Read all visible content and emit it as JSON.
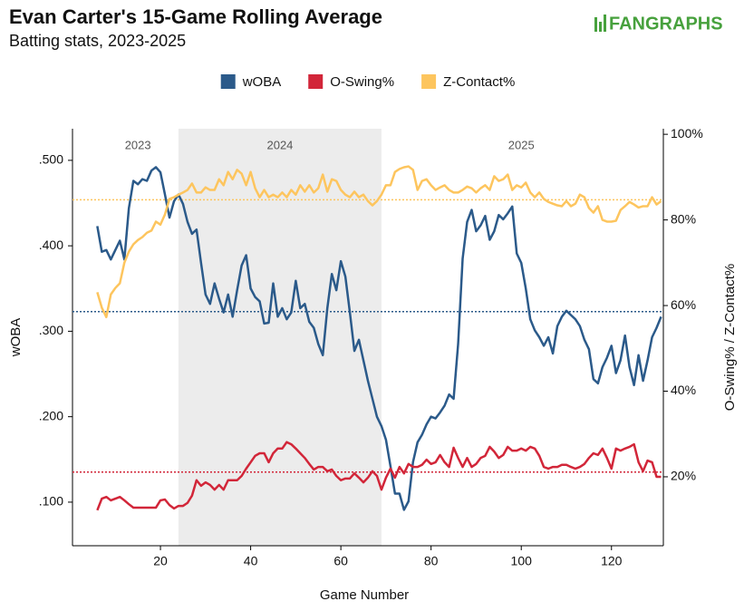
{
  "chart_data": {
    "type": "line",
    "title": "Evan Carter's 15-Game Rolling Average",
    "subtitle": "Batting stats, 2023-2025",
    "logo": "FANGRAPHS",
    "xlabel": "Game Number",
    "ylabel": "wOBA",
    "y2label": "O-Swing% / Z-Contact%",
    "periods": [
      {
        "label": "2023",
        "start": 6,
        "end": 24,
        "shaded": false
      },
      {
        "label": "2024",
        "start": 24,
        "end": 69,
        "shaded": true
      },
      {
        "label": "2025",
        "start": 69,
        "end": 131,
        "shaded": false
      }
    ],
    "x": [
      6,
      7,
      8,
      9,
      10,
      11,
      12,
      13,
      14,
      15,
      16,
      17,
      18,
      19,
      20,
      21,
      22,
      23,
      24,
      25,
      26,
      27,
      28,
      29,
      30,
      31,
      32,
      33,
      34,
      35,
      36,
      37,
      38,
      39,
      40,
      41,
      42,
      43,
      44,
      45,
      46,
      47,
      48,
      49,
      50,
      51,
      52,
      53,
      54,
      55,
      56,
      57,
      58,
      59,
      60,
      61,
      62,
      63,
      64,
      65,
      66,
      67,
      68,
      69,
      70,
      71,
      72,
      73,
      74,
      75,
      76,
      77,
      78,
      79,
      80,
      81,
      82,
      83,
      84,
      85,
      86,
      87,
      88,
      89,
      90,
      91,
      92,
      93,
      94,
      95,
      96,
      97,
      98,
      99,
      100,
      101,
      102,
      103,
      104,
      105,
      106,
      107,
      108,
      109,
      110,
      111,
      112,
      113,
      114,
      115,
      116,
      117,
      118,
      119,
      120,
      121,
      122,
      123,
      124,
      125,
      126,
      127,
      128,
      129,
      130,
      131
    ],
    "xlim": [
      0.5,
      131.5
    ],
    "xticks": [
      20,
      40,
      60,
      80,
      100,
      120
    ],
    "ylim": [
      0.049,
      0.537
    ],
    "yticks": [
      {
        "value": 0.1,
        "label": ".100"
      },
      {
        "value": 0.2,
        "label": ".200"
      },
      {
        "value": 0.3,
        "label": ".300"
      },
      {
        "value": 0.4,
        "label": ".400"
      },
      {
        "value": 0.5,
        "label": ".500"
      }
    ],
    "y2lim": [
      3.9,
      101.3
    ],
    "y2ticks": [
      {
        "value": 20,
        "label": "20%"
      },
      {
        "value": 40,
        "label": "40%"
      },
      {
        "value": 60,
        "label": "60%"
      },
      {
        "value": 80,
        "label": "80%"
      },
      {
        "value": 100,
        "label": "100%"
      }
    ],
    "legend": "top",
    "series": [
      {
        "name": "wOBA",
        "color": "#2b5a8a",
        "axis": "y",
        "reference": 0.323,
        "values": [
          0.423,
          0.393,
          0.395,
          0.384,
          0.395,
          0.406,
          0.384,
          0.444,
          0.476,
          0.472,
          0.478,
          0.476,
          0.488,
          0.492,
          0.486,
          0.46,
          0.433,
          0.452,
          0.46,
          0.449,
          0.428,
          0.414,
          0.419,
          0.38,
          0.343,
          0.332,
          0.356,
          0.338,
          0.322,
          0.343,
          0.317,
          0.348,
          0.377,
          0.389,
          0.35,
          0.34,
          0.335,
          0.309,
          0.31,
          0.356,
          0.317,
          0.327,
          0.314,
          0.322,
          0.359,
          0.327,
          0.332,
          0.311,
          0.304,
          0.285,
          0.272,
          0.327,
          0.367,
          0.348,
          0.382,
          0.364,
          0.322,
          0.277,
          0.29,
          0.266,
          0.242,
          0.221,
          0.2,
          0.189,
          0.173,
          0.142,
          0.11,
          0.11,
          0.091,
          0.101,
          0.147,
          0.17,
          0.179,
          0.191,
          0.2,
          0.198,
          0.205,
          0.213,
          0.226,
          0.221,
          0.285,
          0.385,
          0.428,
          0.442,
          0.417,
          0.424,
          0.435,
          0.407,
          0.417,
          0.436,
          0.431,
          0.438,
          0.446,
          0.391,
          0.38,
          0.35,
          0.314,
          0.301,
          0.293,
          0.283,
          0.293,
          0.274,
          0.306,
          0.317,
          0.324,
          0.319,
          0.314,
          0.306,
          0.29,
          0.279,
          0.244,
          0.239,
          0.258,
          0.269,
          0.283,
          0.251,
          0.266,
          0.295,
          0.258,
          0.237,
          0.272,
          0.242,
          0.266,
          0.293,
          0.304,
          0.317
        ]
      },
      {
        "name": "O-Swing%",
        "color": "#d22639",
        "axis": "y2",
        "reference": 21.1,
        "values": [
          12.2,
          14.9,
          15.3,
          14.5,
          14.9,
          15.3,
          14.5,
          13.6,
          12.8,
          12.8,
          12.8,
          12.8,
          12.8,
          12.8,
          14.5,
          14.7,
          13.4,
          12.6,
          13.2,
          13.2,
          13.9,
          15.6,
          19.2,
          17.9,
          18.7,
          18.1,
          17.0,
          18.1,
          17.0,
          19.2,
          19.2,
          19.2,
          20.2,
          21.9,
          23.4,
          24.9,
          25.5,
          25.5,
          23.4,
          25.5,
          26.6,
          26.6,
          28.1,
          27.6,
          26.6,
          25.5,
          24.4,
          23.0,
          21.7,
          22.3,
          22.3,
          21.3,
          21.7,
          20.2,
          19.2,
          19.6,
          19.6,
          20.8,
          19.8,
          18.7,
          19.8,
          21.3,
          20.2,
          17.0,
          19.8,
          21.9,
          19.8,
          22.3,
          20.8,
          23.0,
          22.3,
          22.3,
          22.8,
          24.0,
          23.0,
          23.4,
          25.1,
          23.4,
          22.3,
          26.8,
          24.4,
          22.3,
          24.4,
          22.3,
          23.0,
          24.4,
          24.9,
          27.0,
          25.9,
          24.4,
          25.1,
          27.0,
          26.1,
          26.1,
          26.6,
          26.1,
          27.0,
          26.6,
          24.9,
          22.3,
          21.9,
          22.3,
          22.3,
          22.8,
          22.8,
          22.3,
          21.9,
          22.3,
          23.0,
          24.4,
          25.5,
          25.1,
          26.6,
          24.4,
          21.9,
          26.6,
          26.1,
          26.6,
          27.0,
          27.6,
          23.4,
          21.3,
          23.8,
          23.4,
          20.0,
          20.0
        ]
      },
      {
        "name": "Z-Contact%",
        "color": "#fdc55e",
        "axis": "y2",
        "reference": 84.7,
        "values": [
          63.1,
          59.5,
          57.3,
          62.6,
          64.1,
          65.2,
          70.0,
          72.6,
          74.3,
          75.3,
          76.0,
          77.0,
          77.5,
          79.6,
          78.9,
          81.3,
          84.9,
          85.3,
          85.9,
          86.4,
          87.0,
          88.5,
          86.4,
          86.4,
          87.6,
          87.0,
          87.0,
          89.5,
          88.1,
          91.2,
          89.5,
          91.7,
          90.8,
          88.1,
          91.2,
          87.4,
          85.3,
          87.0,
          85.3,
          85.9,
          85.3,
          86.4,
          85.3,
          87.0,
          85.9,
          88.1,
          86.6,
          88.1,
          86.4,
          87.4,
          90.6,
          86.6,
          89.5,
          89.1,
          87.0,
          85.9,
          85.3,
          86.6,
          85.3,
          85.9,
          84.4,
          83.4,
          84.4,
          85.9,
          88.1,
          88.1,
          91.2,
          91.9,
          92.3,
          92.5,
          91.7,
          87.0,
          89.1,
          89.5,
          88.1,
          87.0,
          87.6,
          88.1,
          87.0,
          86.4,
          86.4,
          87.0,
          87.8,
          87.4,
          86.4,
          87.4,
          88.1,
          87.0,
          90.2,
          89.1,
          89.5,
          90.6,
          87.0,
          88.1,
          87.6,
          88.7,
          86.4,
          85.3,
          86.4,
          84.9,
          84.2,
          83.8,
          83.4,
          83.2,
          84.4,
          83.2,
          83.8,
          85.9,
          85.3,
          82.8,
          81.7,
          83.2,
          80.0,
          79.6,
          79.6,
          79.8,
          82.3,
          83.2,
          84.2,
          83.6,
          82.9,
          83.2,
          83.2,
          85.3,
          83.6,
          84.4
        ]
      }
    ]
  }
}
